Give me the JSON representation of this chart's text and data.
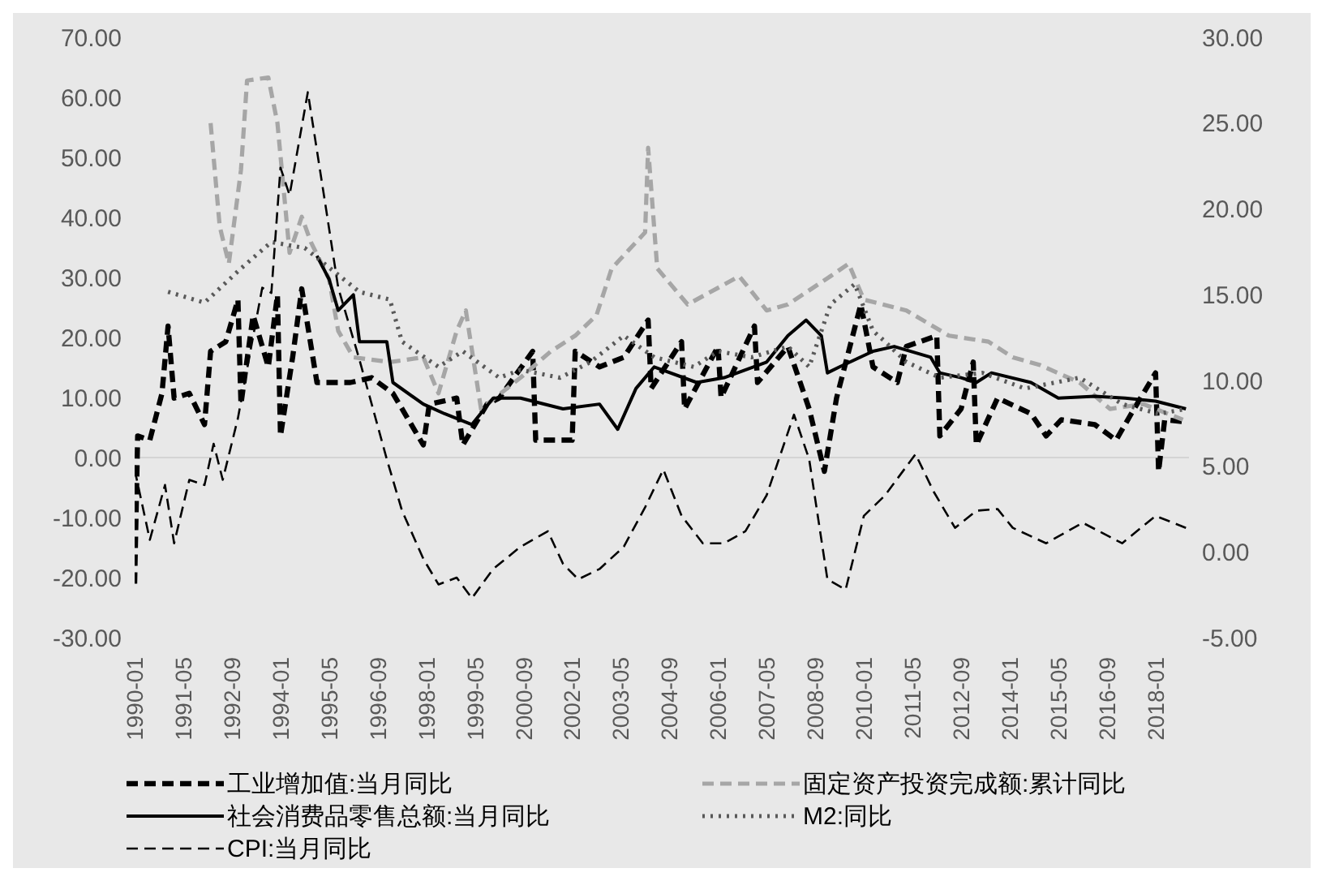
{
  "chart_data": {
    "type": "line",
    "legend": "bottom",
    "xlim": [
      "1990-01",
      "2018-12"
    ],
    "xticks": [
      "1990-01",
      "1991-05",
      "1992-09",
      "1994-01",
      "1995-05",
      "1996-09",
      "1998-01",
      "1999-05",
      "2000-09",
      "2002-01",
      "2003-05",
      "2004-09",
      "2006-01",
      "2007-05",
      "2008-09",
      "2010-01",
      "2011-05",
      "2012-09",
      "2014-01",
      "2015-05",
      "2016-09",
      "2018-01"
    ],
    "ylim": [
      -30,
      70
    ],
    "yticks": [
      {
        "value": -30,
        "label": "-30.00"
      },
      {
        "value": -20,
        "label": "-20.00"
      },
      {
        "value": -10,
        "label": "-10.00"
      },
      {
        "value": 0,
        "label": "0.00"
      },
      {
        "value": 10,
        "label": "10.00"
      },
      {
        "value": 20,
        "label": "20.00"
      },
      {
        "value": 30,
        "label": "30.00"
      },
      {
        "value": 40,
        "label": "40.00"
      },
      {
        "value": 50,
        "label": "50.00"
      },
      {
        "value": 60,
        "label": "60.00"
      },
      {
        "value": 70,
        "label": "70.00"
      }
    ],
    "y2lim": [
      -5,
      30
    ],
    "y2ticks": [
      {
        "value": -5,
        "label": "-5.00"
      },
      {
        "value": 0,
        "label": "0.00"
      },
      {
        "value": 5,
        "label": "5.00"
      },
      {
        "value": 10,
        "label": "10.00"
      },
      {
        "value": 15,
        "label": "15.00"
      },
      {
        "value": 20,
        "label": "20.00"
      },
      {
        "value": 25,
        "label": "25.00"
      },
      {
        "value": 30,
        "label": "30.00"
      }
    ],
    "ref_lines": [
      {
        "axis": "y",
        "value": 0,
        "color": "#d4d4d4"
      }
    ],
    "series": [
      {
        "name": "工业增加值:当月同比",
        "color": "#000000",
        "line_style": "dashed",
        "x": [
          "1990-01",
          "1990-02",
          "1990-06",
          "1990-10",
          "1990-12",
          "1991-02",
          "1991-07",
          "1991-12",
          "1992-02",
          "1992-07",
          "1992-11",
          "1992-12",
          "1993-04",
          "1993-09",
          "1993-12",
          "1994-01",
          "1994-05",
          "1994-08",
          "1995-01",
          "1995-12",
          "1996-07",
          "1997-02",
          "1997-12",
          "1998-02",
          "1998-11",
          "1999-01",
          "1999-09",
          "2000-01",
          "2000-12",
          "2001-01",
          "2002-01",
          "2002-02",
          "2002-10",
          "2003-06",
          "2004-02",
          "2004-03",
          "2005-01",
          "2005-02",
          "2006-01",
          "2006-02",
          "2007-01",
          "2007-02",
          "2007-12",
          "2008-07",
          "2008-12",
          "2009-04",
          "2009-12",
          "2010-04",
          "2010-12",
          "2011-03",
          "2012-01",
          "2012-02",
          "2012-09",
          "2013-01",
          "2013-02",
          "2013-09",
          "2014-08",
          "2015-01",
          "2015-06",
          "2016-05",
          "2016-12",
          "2017-05",
          "2018-01",
          "2018-02",
          "2018-04",
          "2018-10"
        ],
        "values": [
          -21,
          3.6,
          2.9,
          10.7,
          21.9,
          9.9,
          10.7,
          5.5,
          17.7,
          19.3,
          26.3,
          8.9,
          23.7,
          15.1,
          27.1,
          3.6,
          16.7,
          28.1,
          12.5,
          12.5,
          13.3,
          10.7,
          2.1,
          8.9,
          9.9,
          2.1,
          8.9,
          9.9,
          17.7,
          2.9,
          2.9,
          17.7,
          15.1,
          16.7,
          22.9,
          11.5,
          19.3,
          8.1,
          18.5,
          10,
          21.9,
          12.5,
          18.5,
          8.1,
          -2.3,
          9.9,
          25.5,
          15.1,
          12.5,
          18.5,
          20.3,
          3.6,
          8.1,
          15.9,
          2.1,
          9.9,
          7.3,
          3.6,
          6.3,
          5.5,
          2.9,
          7.3,
          14.1,
          -2.3,
          6.3,
          6
        ]
      },
      {
        "name": "固定资产投资完成额:累计同比",
        "color": "#a6a6a6",
        "line_style": "dashed",
        "x": [
          "1992-02",
          "1992-05",
          "1992-08",
          "1992-12",
          "1993-02",
          "1993-09",
          "1993-12",
          "1994-04",
          "1994-08",
          "1994-11",
          "1995-05",
          "1995-08",
          "1996-01",
          "1997-01",
          "1997-12",
          "1998-05",
          "1998-11",
          "1999-02",
          "1999-07",
          "2000-08",
          "2001-06",
          "2002-02",
          "2002-09",
          "2003-02",
          "2004-01",
          "2004-02",
          "2004-05",
          "2005-03",
          "2006-08",
          "2007-05",
          "2007-12",
          "2009-02",
          "2009-08",
          "2010-01",
          "2011-03",
          "2012-05",
          "2013-06",
          "2014-02",
          "2014-11",
          "2015-12",
          "2016-10",
          "2017-09",
          "2018-10"
        ],
        "values": [
          55.7,
          38.5,
          32.3,
          47.9,
          62.8,
          63.3,
          55.7,
          34.1,
          40.1,
          35.9,
          29.7,
          21.1,
          16.7,
          15.9,
          16.7,
          10.7,
          21.1,
          24.5,
          8.1,
          13.3,
          17.7,
          20.3,
          23.7,
          31.5,
          37.5,
          51.6,
          31.5,
          25.5,
          30.2,
          24.5,
          25.5,
          30.2,
          32.3,
          26.3,
          24.5,
          20.3,
          19.3,
          16.7,
          15.4,
          12.5,
          8.1,
          8.9,
          6.3
        ]
      },
      {
        "name": "社会消费品零售总额:当月同比",
        "color": "#000000",
        "line_style": "solid",
        "x": [
          "1995-01",
          "1995-05",
          "1995-08",
          "1996-01",
          "1996-03",
          "1996-12",
          "1997-02",
          "1997-12",
          "1998-07",
          "1999-04",
          "1999-11",
          "2000-08",
          "2001-10",
          "2002-10",
          "2003-04",
          "2003-10",
          "2004-04",
          "2005-06",
          "2006-03",
          "2007-05",
          "2007-12",
          "2008-06",
          "2008-11",
          "2009-01",
          "2009-05",
          "2010-04",
          "2010-11",
          "2011-11",
          "2012-02",
          "2012-09",
          "2013-02",
          "2013-07",
          "2014-08",
          "2015-05",
          "2016-05",
          "2017-03",
          "2018-01",
          "2018-11"
        ],
        "values": [
          33.6,
          29.7,
          24.5,
          27.1,
          19.3,
          19.3,
          12.5,
          8.9,
          7.3,
          5.5,
          9.9,
          9.9,
          8.1,
          8.9,
          4.7,
          11.5,
          15.1,
          12.5,
          13.3,
          15.9,
          20.3,
          22.9,
          20.3,
          14.1,
          15.1,
          17.7,
          18.5,
          16.7,
          14.1,
          13.3,
          12.5,
          14.1,
          12.5,
          9.9,
          10.2,
          9.9,
          9.4,
          8.1
        ]
      },
      {
        "name": "M2:同比",
        "color": "#595959",
        "line_style": "dotted",
        "x": [
          "1990-12",
          "1991-12",
          "1992-12",
          "1993-10",
          "1994-09",
          "1996-03",
          "1997-01",
          "1997-05",
          "1998-05",
          "1999-01",
          "2000-01",
          "2000-08",
          "2001-09",
          "2002-07",
          "2003-06",
          "2004-04",
          "2005-05",
          "2006-01",
          "2006-12",
          "2007-12",
          "2008-07",
          "2009-02",
          "2009-10",
          "2010-04",
          "2010-08",
          "2011-03",
          "2012-02",
          "2013-04",
          "2014-06",
          "2015-12",
          "2017-02",
          "2018-02",
          "2018-10"
        ],
        "values": [
          27.6,
          25.8,
          31.5,
          35.9,
          34.9,
          27.6,
          26.3,
          19.3,
          15.1,
          17.7,
          13.3,
          14.6,
          13.3,
          15.9,
          20.3,
          16.7,
          15.1,
          17.7,
          16.7,
          18.5,
          15.1,
          25.5,
          28.9,
          21.1,
          19.3,
          15.9,
          13.3,
          14.1,
          11.5,
          13.3,
          8.9,
          7.3,
          8
        ]
      },
      {
        "name": "CPI:当月同比",
        "color": "#000000",
        "line_style": "dashed",
        "axis": "y2",
        "x": [
          "1990-01",
          "1990-06",
          "1990-11",
          "1991-02",
          "1991-07",
          "1991-12",
          "1992-03",
          "1992-06",
          "1992-11",
          "1993-07",
          "1993-10",
          "1994-01",
          "1994-04",
          "1994-10",
          "1995-04",
          "1995-08",
          "1996-03",
          "1996-12",
          "1997-05",
          "1997-12",
          "1998-05",
          "1998-11",
          "1999-04",
          "1999-11",
          "2000-08",
          "2001-05",
          "2001-10",
          "2002-03",
          "2002-10",
          "2003-06",
          "2004-01",
          "2004-07",
          "2005-01",
          "2005-08",
          "2006-03",
          "2006-10",
          "2007-05",
          "2008-02",
          "2008-07",
          "2009-01",
          "2009-07",
          "2010-01",
          "2010-08",
          "2011-06",
          "2011-12",
          "2012-07",
          "2013-02",
          "2013-09",
          "2014-02",
          "2015-01",
          "2016-01",
          "2017-02",
          "2018-01",
          "2018-11"
        ],
        "values": [
          4.8,
          0.7,
          3.9,
          0.5,
          4.2,
          3.9,
          6.3,
          4.2,
          7.8,
          15.4,
          15.1,
          22.4,
          20.8,
          26.8,
          20,
          15.4,
          11.2,
          5.4,
          2.4,
          -0.4,
          -1.9,
          -1.5,
          -2.7,
          -1,
          0.3,
          1.2,
          -0.7,
          -1.6,
          -1,
          0.3,
          2.6,
          4.8,
          2.1,
          0.5,
          0.5,
          1.2,
          3.3,
          8,
          5.4,
          -1.6,
          -2.2,
          2.1,
          3.3,
          5.7,
          3.5,
          1.4,
          2.4,
          2.5,
          1.4,
          0.5,
          1.7,
          0.5,
          2.1,
          1.4
        ]
      }
    ]
  }
}
